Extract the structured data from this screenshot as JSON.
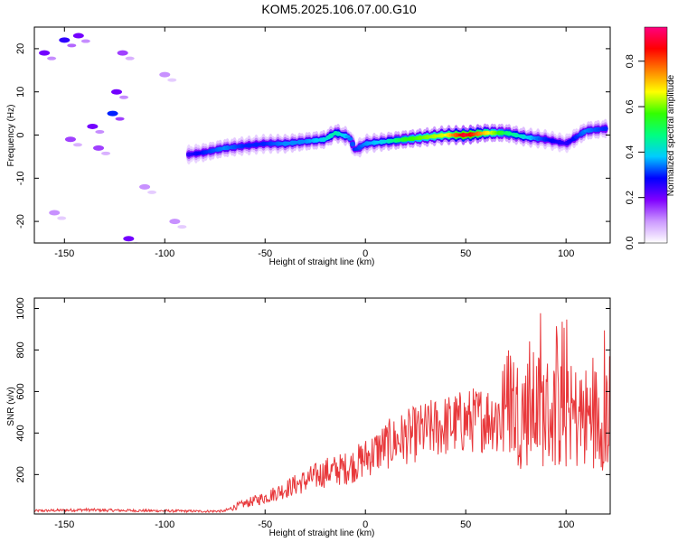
{
  "page": {
    "title": "KOM5.2025.106.07.00.G10"
  },
  "chart_data": [
    {
      "type": "heatmap",
      "xlabel": "Height of straight line (km)",
      "ylabel": "Frequency (Hz)",
      "xlim": [
        -165,
        122
      ],
      "ylim": [
        -25,
        25
      ],
      "xticks": [
        "-150",
        "-100",
        "-50",
        "0",
        "50",
        "100"
      ],
      "yticks": [
        "-20",
        "-10",
        "0",
        "10",
        "20"
      ],
      "colorbar": {
        "label": "Normalized spectral amplitude",
        "range": [
          0,
          0.95
        ],
        "ticks": [
          "0.0",
          "0.2",
          "0.4",
          "0.6",
          "0.8"
        ],
        "colors": [
          "#ffffff",
          "#cc99ff",
          "#8000ff",
          "#0000ff",
          "#00ccff",
          "#00ff80",
          "#33ff00",
          "#ffff00",
          "#ff8000",
          "#ff0000",
          "#ff0080"
        ]
      },
      "ridge": {
        "x": [
          -88,
          -80,
          -70,
          -60,
          -50,
          -40,
          -30,
          -20,
          -15,
          -8,
          -5,
          0,
          10,
          20,
          30,
          40,
          50,
          60,
          70,
          80,
          90,
          100,
          110,
          120
        ],
        "freq": [
          -4.5,
          -4,
          -3,
          -2.5,
          -2,
          -2,
          -1.5,
          -1,
          0.5,
          -0.5,
          -3.5,
          -2,
          -1.5,
          -1,
          -0.5,
          0,
          0,
          0.5,
          0.5,
          -0.5,
          -1,
          -2,
          1,
          1.5
        ],
        "amplitude": [
          0.25,
          0.3,
          0.35,
          0.3,
          0.3,
          0.35,
          0.35,
          0.4,
          0.45,
          0.35,
          0.3,
          0.35,
          0.4,
          0.55,
          0.6,
          0.65,
          0.9,
          0.7,
          0.5,
          0.4,
          0.3,
          0.25,
          0.35,
          0.3
        ]
      },
      "noise_blobs": [
        {
          "x": -160,
          "freq": 19,
          "amplitude": 0.2
        },
        {
          "x": -150,
          "freq": 22,
          "amplitude": 0.25
        },
        {
          "x": -143,
          "freq": 23,
          "amplitude": 0.2
        },
        {
          "x": -147,
          "freq": -1,
          "amplitude": 0.15
        },
        {
          "x": -136,
          "freq": 2,
          "amplitude": 0.2
        },
        {
          "x": -133,
          "freq": -3,
          "amplitude": 0.15
        },
        {
          "x": -126,
          "freq": 5,
          "amplitude": 0.3
        },
        {
          "x": -124,
          "freq": 10,
          "amplitude": 0.2
        },
        {
          "x": -121,
          "freq": 19,
          "amplitude": 0.15
        },
        {
          "x": -118,
          "freq": -24,
          "amplitude": 0.2
        },
        {
          "x": -155,
          "freq": -18,
          "amplitude": 0.1
        },
        {
          "x": -110,
          "freq": -12,
          "amplitude": 0.1
        },
        {
          "x": -100,
          "freq": 14,
          "amplitude": 0.1
        },
        {
          "x": -95,
          "freq": -20,
          "amplitude": 0.1
        }
      ]
    },
    {
      "type": "line",
      "xlabel": "Height of straight line (km)",
      "ylabel": "SNR (v/v)",
      "xlim": [
        -165,
        122
      ],
      "ylim": [
        10,
        1050
      ],
      "xticks": [
        "-150",
        "-100",
        "-50",
        "0",
        "50",
        "100"
      ],
      "yticks": [
        "200",
        "400",
        "600",
        "800",
        "1000"
      ],
      "color": "#e8383b",
      "series": [
        {
          "x": [
            -165,
            -150,
            -140,
            -130,
            -120,
            -110,
            -100,
            -90,
            -80,
            -70,
            -65,
            -60,
            -55,
            -50,
            -45,
            -40,
            -35,
            -30,
            -25,
            -20,
            -15,
            -10,
            -5,
            0,
            5,
            10,
            15,
            20,
            25,
            30,
            35,
            40,
            45,
            50,
            55,
            60,
            65,
            70,
            72,
            75,
            80,
            85,
            90,
            95,
            100,
            105,
            110,
            115,
            122
          ],
          "values": [
            25,
            28,
            30,
            28,
            27,
            26,
            25,
            24,
            23,
            24,
            45,
            60,
            75,
            90,
            110,
            130,
            150,
            170,
            190,
            210,
            220,
            230,
            250,
            280,
            310,
            340,
            360,
            380,
            395,
            410,
            425,
            435,
            445,
            455,
            465,
            475,
            485,
            495,
            600,
            500,
            510,
            520,
            505,
            490,
            480,
            475,
            470,
            480,
            490
          ]
        }
      ]
    }
  ]
}
